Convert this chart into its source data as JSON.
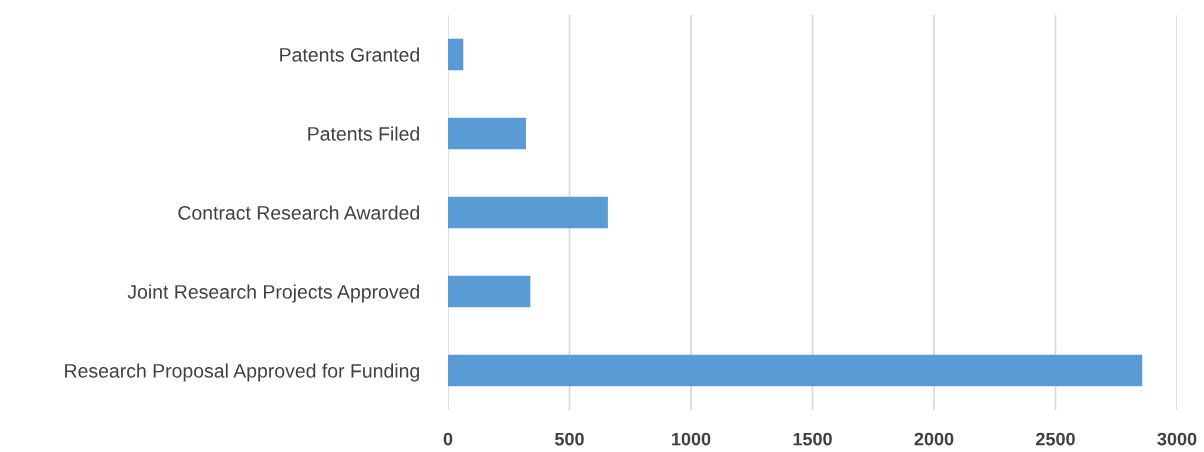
{
  "chart_data": {
    "type": "bar",
    "orientation": "horizontal",
    "categories": [
      "Patents Granted",
      "Patents Filed",
      "Contract Research Awarded",
      "Joint Research Projects Approved",
      "Research Proposal Approved for Funding"
    ],
    "values": [
      63,
      321,
      658,
      339,
      2857
    ],
    "color": "#5b9bd5",
    "xlim": [
      0,
      3000
    ],
    "xticks": [
      0,
      500,
      1000,
      1500,
      2000,
      2500,
      3000
    ],
    "grid": "x",
    "legend": false
  }
}
